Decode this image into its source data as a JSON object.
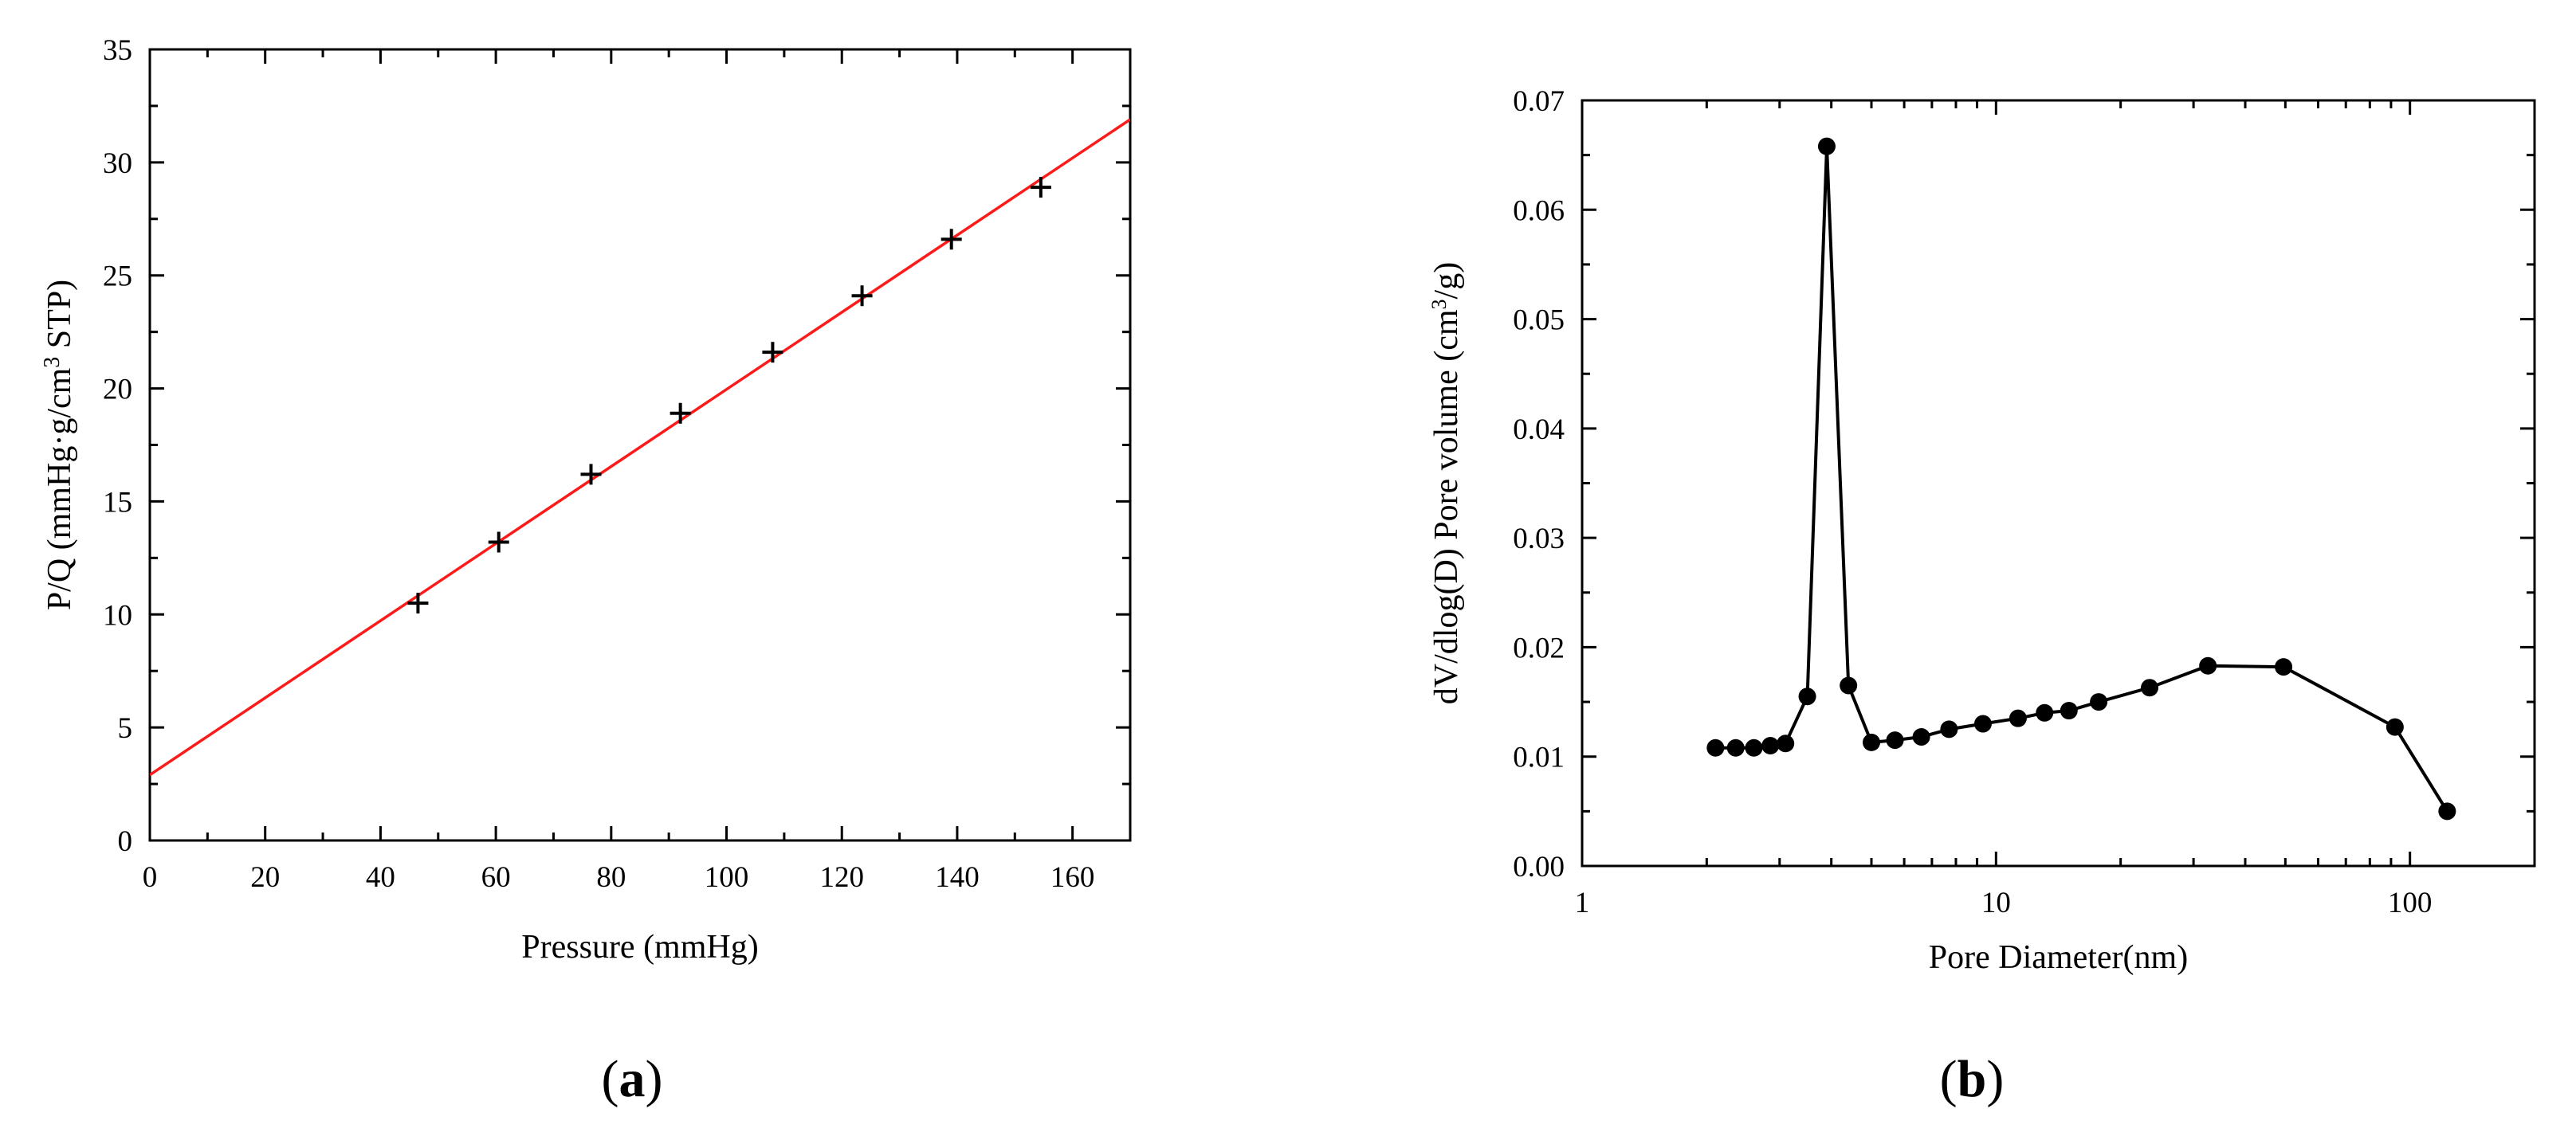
{
  "chart_data": [
    {
      "type": "scatter",
      "panel_label": "a",
      "xlabel": "Pressure (mmHg)",
      "ylabel_parts": [
        "P/Q (mmHg·g/cm",
        "3",
        " STP)"
      ],
      "xlim": [
        0,
        170
      ],
      "ylim": [
        0,
        35
      ],
      "xticks": [
        "0",
        "20",
        "40",
        "60",
        "80",
        "100",
        "120",
        "140",
        "160"
      ],
      "yticks": [
        "0",
        "5",
        "10",
        "15",
        "20",
        "25",
        "30",
        "35"
      ],
      "grid": false,
      "marker": "plus",
      "marker_color": "#000000",
      "fit_line_color": "#ff1a1a",
      "series": [
        {
          "x": [
            46.5,
            60.5,
            76.5,
            92,
            108,
            123.5,
            139,
            154.5
          ],
          "y": [
            10.5,
            13.2,
            16.2,
            18.9,
            21.6,
            24.1,
            26.6,
            28.9
          ]
        }
      ],
      "fit_line": {
        "x": [
          0,
          170
        ],
        "y": [
          2.9,
          31.9
        ]
      }
    },
    {
      "type": "line",
      "panel_label": "b",
      "xlabel": "Pore Diameter(nm)",
      "ylabel_parts": [
        "dV/dlog(D) Pore volume (cm",
        "3",
        "/g)"
      ],
      "xscale": "log",
      "xlim": [
        1,
        200
      ],
      "ylim": [
        0,
        0.07
      ],
      "xticks": [
        "1",
        "10",
        "100"
      ],
      "yticks": [
        "0.00",
        "0.01",
        "0.02",
        "0.03",
        "0.04",
        "0.05",
        "0.06",
        "0.07"
      ],
      "grid": false,
      "marker": "filled-circle",
      "line_color": "#000000",
      "series": [
        {
          "x": [
            2.1,
            2.35,
            2.6,
            2.85,
            3.1,
            3.5,
            3.9,
            4.4,
            5.0,
            5.7,
            6.6,
            7.7,
            9.3,
            11.3,
            13.1,
            15.0,
            17.7,
            23.5,
            32.5,
            49.5,
            92,
            123
          ],
          "y": [
            0.0108,
            0.0108,
            0.0108,
            0.011,
            0.0112,
            0.0155,
            0.0658,
            0.0165,
            0.0113,
            0.0115,
            0.0118,
            0.0125,
            0.013,
            0.0135,
            0.014,
            0.0142,
            0.015,
            0.0163,
            0.0183,
            0.0182,
            0.0127,
            0.005
          ]
        }
      ]
    }
  ]
}
